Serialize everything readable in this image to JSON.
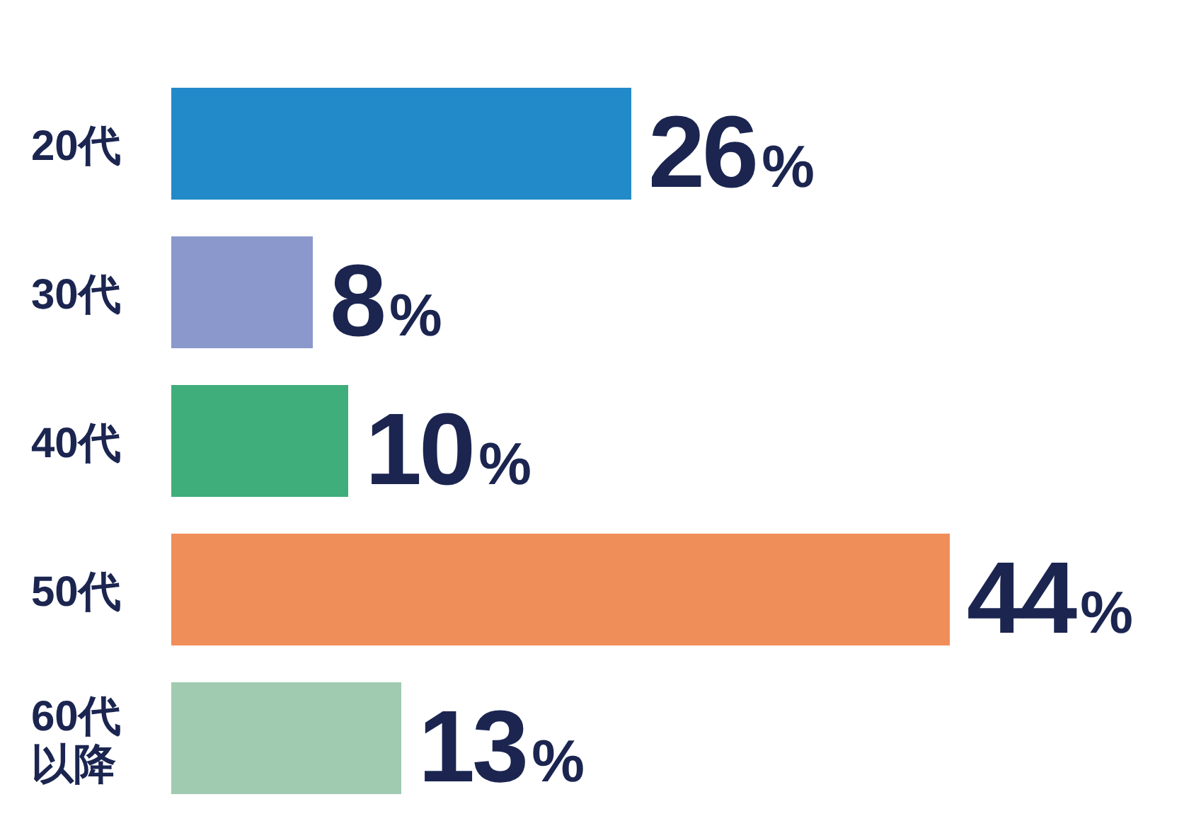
{
  "chart_data": {
    "type": "bar",
    "orientation": "horizontal",
    "categories": [
      "20代",
      "30代",
      "40代",
      "50代",
      "60代以降"
    ],
    "values": [
      26,
      8,
      10,
      44,
      13
    ],
    "colors": [
      "#228ac8",
      "#8b98cc",
      "#40ae7a",
      "#f08e5a",
      "#a0cbb0"
    ],
    "value_labels": [
      "26%",
      "8%",
      "10%",
      "44%",
      "13%"
    ]
  }
}
